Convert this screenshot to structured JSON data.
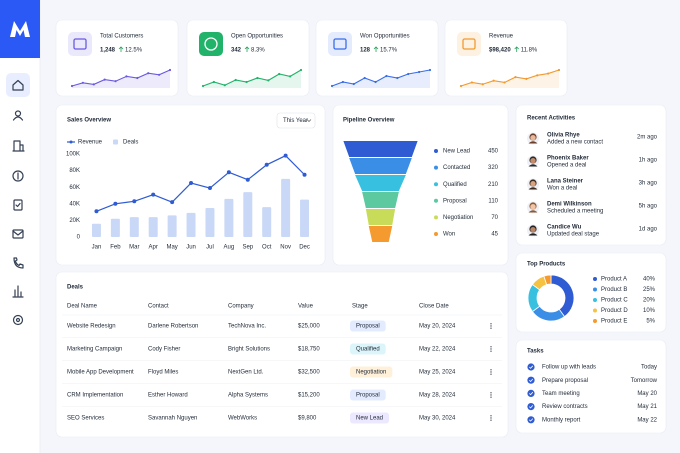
{
  "kpis": [
    {
      "label": "Total Customers",
      "value": "1,248",
      "change": "12.5%",
      "color": "#6a5ae0",
      "trend": [
        2,
        3,
        2.5,
        4,
        3.5,
        5,
        4.5,
        6,
        5.5,
        7
      ]
    },
    {
      "label": "Open Opportunities",
      "value": "342",
      "change": "8.3%",
      "color": "#22b36b",
      "trend": [
        2,
        3,
        2.2,
        3.5,
        3,
        4,
        3.4,
        5,
        4.4,
        6
      ]
    },
    {
      "label": "Won Opportunities",
      "value": "128",
      "change": "15.7%",
      "color": "#3a6ee8",
      "trend": [
        2,
        3,
        2.5,
        4,
        3,
        4.5,
        4,
        5,
        5.5,
        6
      ]
    },
    {
      "label": "Revenue",
      "value": "$98,420",
      "change": "11.8%",
      "color": "#f29a2e",
      "trend": [
        2,
        3,
        2.5,
        3.5,
        3,
        4.5,
        4,
        5,
        5.5,
        6.5
      ]
    }
  ],
  "chart_data": [
    {
      "type": "combo",
      "title": "Sales Overview",
      "filter": "This Year",
      "categories": [
        "Jan",
        "Feb",
        "Mar",
        "Apr",
        "May",
        "Jun",
        "Jul",
        "Aug",
        "Sep",
        "Oct",
        "Nov",
        "Dec"
      ],
      "series": [
        {
          "name": "Revenue",
          "type": "line",
          "color": "#2f5bd3",
          "values": [
            31000,
            40000,
            43000,
            51000,
            42000,
            65000,
            59000,
            78000,
            69000,
            87000,
            98000,
            75000
          ]
        },
        {
          "name": "Deals",
          "type": "bar",
          "color": "#c9d8f7",
          "values": [
            16000,
            22000,
            24000,
            24000,
            26000,
            29000,
            35000,
            46000,
            54000,
            36000,
            70000,
            45000
          ]
        }
      ],
      "ylim": [
        0,
        100000
      ],
      "yticks": [
        0,
        {
          "value": 20000,
          "label": "20K"
        },
        {
          "value": 40000,
          "label": "40K"
        },
        {
          "value": 60000,
          "label": "60K"
        },
        {
          "value": 80000,
          "label": "80K"
        },
        {
          "value": 100000,
          "label": "100K"
        }
      ],
      "legend": "top-left"
    },
    {
      "type": "funnel",
      "title": "Pipeline Overview",
      "categories": [
        "New Lead",
        "Contacted",
        "Qualified",
        "Proposal",
        "Negotiation",
        "Won"
      ],
      "values": [
        450,
        320,
        210,
        110,
        70,
        45
      ],
      "colors": [
        "#2f5bd3",
        "#3a8ee6",
        "#38c0e0",
        "#5cc9a0",
        "#c9dc5a",
        "#f59a2e"
      ]
    },
    {
      "type": "donut",
      "title": "Top Products",
      "categories": [
        "Product A",
        "Product B",
        "Product C",
        "Product D",
        "Product E"
      ],
      "values": [
        40,
        25,
        20,
        10,
        5
      ],
      "value_labels": [
        "40%",
        "25%",
        "20%",
        "10%",
        "5%"
      ],
      "colors": [
        "#2f5bd3",
        "#3a8ee6",
        "#38c0e0",
        "#f5c242",
        "#f59a2e"
      ]
    }
  ],
  "deals": {
    "title": "Deals",
    "columns": [
      "Deal Name",
      "Contact",
      "Company",
      "Value",
      "Stage",
      "Close Date"
    ],
    "rows": [
      [
        "Website Redesign",
        "Darlene Robertson",
        "TechNova Inc.",
        "$25,000",
        "Proposal",
        "May 20, 2024"
      ],
      [
        "Marketing Campaign",
        "Cody Fisher",
        "Bright Solutions",
        "$18,750",
        "Qualified",
        "May 22, 2024"
      ],
      [
        "Mobile App Development",
        "Floyd Miles",
        "NextGen Ltd.",
        "$32,500",
        "Negotiation",
        "May 25, 2024"
      ],
      [
        "CRM Implementation",
        "Esther Howard",
        "Alpha Systems",
        "$15,200",
        "Proposal",
        "May 28, 2024"
      ],
      [
        "SEO Services",
        "Savannah Nguyen",
        "WebWorks",
        "$9,800",
        "New Lead",
        "May 30, 2024"
      ]
    ]
  },
  "activities": {
    "title": "Recent Activities",
    "items": [
      {
        "name": "Olivia Rhye",
        "action": "Added a new contact",
        "time": "2m ago"
      },
      {
        "name": "Phoenix Baker",
        "action": "Opened a deal",
        "time": "1h ago"
      },
      {
        "name": "Lana Steiner",
        "action": "Won a deal",
        "time": "3h ago"
      },
      {
        "name": "Demi Wilkinson",
        "action": "Scheduled a meeting",
        "time": "5h ago"
      },
      {
        "name": "Candice Wu",
        "action": "Updated deal stage",
        "time": "1d ago"
      }
    ]
  },
  "tasks": {
    "title": "Tasks",
    "items": [
      {
        "text": "Follow up with leads",
        "due": "Today"
      },
      {
        "text": "Prepare proposal",
        "due": "Tomorrow"
      },
      {
        "text": "Team meeting",
        "due": "May 20"
      },
      {
        "text": "Review contracts",
        "due": "May 21"
      },
      {
        "text": "Monthly report",
        "due": "May 22"
      }
    ]
  }
}
